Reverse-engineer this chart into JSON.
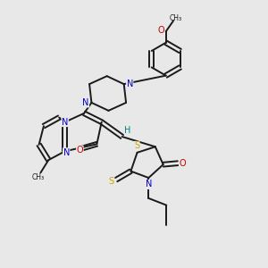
{
  "background_color": "#e8e8e8",
  "bond_color": "#1a1a1a",
  "atom_colors": {
    "N": "#0000cc",
    "O": "#cc0000",
    "S": "#ccaa00",
    "H": "#008080"
  },
  "figsize": [
    3.0,
    3.0
  ],
  "dpi": 100,
  "lw": 1.4,
  "fs": 7.0,
  "dbl_off": 0.008
}
